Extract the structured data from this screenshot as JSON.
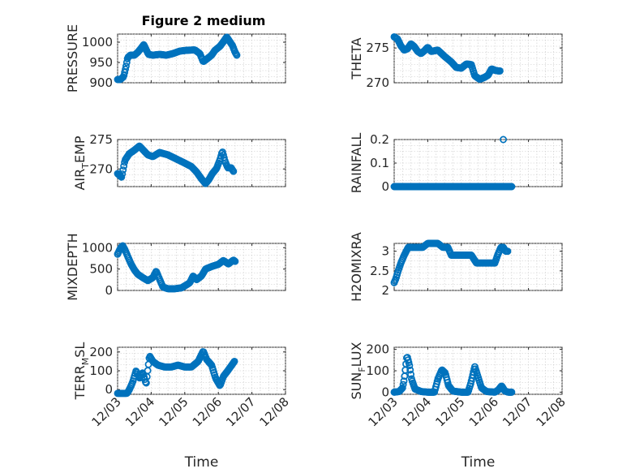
{
  "figure_title": "Figure 2 medium",
  "marker_color": "#0072bd",
  "chart_data": [
    {
      "type": "scatter",
      "id": "pressure",
      "ylabel": "PRESSURE",
      "ylabel_sub": "",
      "ylim": [
        900,
        1020
      ],
      "yticks": [
        900,
        950,
        1000
      ],
      "yticklabels": [
        "900",
        "950",
        "1000"
      ],
      "xlim": [
        0,
        5
      ],
      "xticks": [
        0,
        1,
        2,
        3,
        4,
        5
      ],
      "xticklabels": [
        "12/03",
        "12/04",
        "12/05",
        "12/06",
        "12/07",
        "12/08"
      ],
      "show_xticklabels": false,
      "xlabel": "",
      "grid": true,
      "knots": [
        [
          0,
          908
        ],
        [
          0.08,
          908
        ],
        [
          0.18,
          915
        ],
        [
          0.25,
          940
        ],
        [
          0.3,
          962
        ],
        [
          0.38,
          968
        ],
        [
          0.5,
          968
        ],
        [
          0.6,
          975
        ],
        [
          0.7,
          985
        ],
        [
          0.78,
          994
        ],
        [
          0.86,
          980
        ],
        [
          0.92,
          970
        ],
        [
          1.05,
          968
        ],
        [
          1.25,
          970
        ],
        [
          1.45,
          968
        ],
        [
          1.65,
          972
        ],
        [
          1.85,
          978
        ],
        [
          2.05,
          980
        ],
        [
          2.3,
          981
        ],
        [
          2.45,
          972
        ],
        [
          2.55,
          952
        ],
        [
          2.65,
          958
        ],
        [
          2.8,
          968
        ],
        [
          2.9,
          980
        ],
        [
          3.05,
          990
        ],
        [
          3.15,
          1001
        ],
        [
          3.25,
          1013
        ],
        [
          3.32,
          1004
        ],
        [
          3.42,
          992
        ],
        [
          3.5,
          975
        ],
        [
          3.55,
          968
        ]
      ],
      "n": 170
    },
    {
      "type": "scatter",
      "id": "theta",
      "ylabel": "THETA",
      "ylabel_sub": "",
      "ylim": [
        270,
        277
      ],
      "yticks": [
        270,
        275
      ],
      "yticklabels": [
        "270",
        "275"
      ],
      "xlim": [
        0,
        5
      ],
      "xticks": [
        0,
        1,
        2,
        3,
        4,
        5
      ],
      "xticklabels": [
        "12/03",
        "12/04",
        "12/05",
        "12/06",
        "12/07",
        "12/08"
      ],
      "show_xticklabels": false,
      "xlabel": "",
      "grid": true,
      "knots": [
        [
          0,
          276.6
        ],
        [
          0.1,
          276.3
        ],
        [
          0.2,
          275.3
        ],
        [
          0.3,
          274.7
        ],
        [
          0.4,
          274.9
        ],
        [
          0.5,
          275.6
        ],
        [
          0.6,
          275.2
        ],
        [
          0.7,
          274.5
        ],
        [
          0.8,
          274.2
        ],
        [
          0.9,
          274.6
        ],
        [
          1.0,
          275.1
        ],
        [
          1.1,
          274.5
        ],
        [
          1.3,
          274.7
        ],
        [
          1.5,
          273.8
        ],
        [
          1.7,
          273.0
        ],
        [
          1.85,
          272.2
        ],
        [
          2.0,
          272.1
        ],
        [
          2.15,
          272.7
        ],
        [
          2.3,
          272.6
        ],
        [
          2.4,
          271.0
        ],
        [
          2.55,
          270.5
        ],
        [
          2.7,
          270.8
        ],
        [
          2.8,
          271.1
        ],
        [
          2.9,
          272.0
        ],
        [
          3.0,
          271.8
        ],
        [
          3.1,
          271.7
        ],
        [
          3.15,
          271.7
        ]
      ],
      "n": 160
    },
    {
      "type": "scatter",
      "id": "air_temp",
      "ylabel": "AIR",
      "ylabel_sub": "T",
      "ylabel_rest": "EMP",
      "ylim": [
        267,
        275
      ],
      "yticks": [
        270,
        275
      ],
      "yticklabels": [
        "270",
        "275"
      ],
      "xlim": [
        0,
        5
      ],
      "xticks": [
        0,
        1,
        2,
        3,
        4,
        5
      ],
      "xticklabels": [
        "12/03",
        "12/04",
        "12/05",
        "12/06",
        "12/07",
        "12/08"
      ],
      "show_xticklabels": false,
      "xlabel": "",
      "grid": true,
      "knots": [
        [
          0,
          269.2
        ],
        [
          0.12,
          268.6
        ],
        [
          0.22,
          271.5
        ],
        [
          0.35,
          272.6
        ],
        [
          0.5,
          273.2
        ],
        [
          0.65,
          273.9
        ],
        [
          0.75,
          273.3
        ],
        [
          0.9,
          272.4
        ],
        [
          1.05,
          272.1
        ],
        [
          1.25,
          272.8
        ],
        [
          1.5,
          272.4
        ],
        [
          1.75,
          271.7
        ],
        [
          2.0,
          271.0
        ],
        [
          2.2,
          270.4
        ],
        [
          2.35,
          269.5
        ],
        [
          2.5,
          268.3
        ],
        [
          2.62,
          267.5
        ],
        [
          2.72,
          268.2
        ],
        [
          2.82,
          269.2
        ],
        [
          2.95,
          270.1
        ],
        [
          3.05,
          271.6
        ],
        [
          3.12,
          273.0
        ],
        [
          3.2,
          271.3
        ],
        [
          3.28,
          270.2
        ],
        [
          3.38,
          270.2
        ],
        [
          3.45,
          269.6
        ]
      ],
      "n": 150
    },
    {
      "type": "scatter",
      "id": "rainfall",
      "ylabel": "RAINFALL",
      "ylabel_sub": "",
      "ylim": [
        0,
        0.2
      ],
      "yticks": [
        0,
        0.1,
        0.2
      ],
      "yticklabels": [
        "0",
        "0.1",
        "0.2"
      ],
      "xlim": [
        0,
        5
      ],
      "xticks": [
        0,
        1,
        2,
        3,
        4,
        5
      ],
      "xticklabels": [
        "12/03",
        "12/04",
        "12/05",
        "12/06",
        "12/07",
        "12/08"
      ],
      "show_xticklabels": false,
      "xlabel": "",
      "grid": true,
      "knots": [
        [
          0,
          0
        ],
        [
          3.5,
          0
        ]
      ],
      "n": 180,
      "extra_points": [
        [
          3.25,
          0.2
        ]
      ]
    },
    {
      "type": "scatter",
      "id": "mixdepth",
      "ylabel": "MIXDEPTH",
      "ylabel_sub": "",
      "ylim": [
        0,
        1100
      ],
      "yticks": [
        0,
        500,
        1000
      ],
      "yticklabels": [
        "0",
        "500",
        "1000"
      ],
      "xlim": [
        0,
        5
      ],
      "xticks": [
        0,
        1,
        2,
        3,
        4,
        5
      ],
      "xticklabels": [
        "12/03",
        "12/04",
        "12/05",
        "12/06",
        "12/07",
        "12/08"
      ],
      "show_xticklabels": false,
      "xlabel": "",
      "grid": true,
      "knots": [
        [
          0,
          850
        ],
        [
          0.08,
          980
        ],
        [
          0.15,
          1050
        ],
        [
          0.22,
          950
        ],
        [
          0.3,
          800
        ],
        [
          0.4,
          620
        ],
        [
          0.5,
          480
        ],
        [
          0.6,
          380
        ],
        [
          0.75,
          300
        ],
        [
          0.9,
          230
        ],
        [
          1.05,
          300
        ],
        [
          1.15,
          450
        ],
        [
          1.25,
          260
        ],
        [
          1.35,
          80
        ],
        [
          1.5,
          40
        ],
        [
          1.7,
          40
        ],
        [
          1.9,
          60
        ],
        [
          2.05,
          130
        ],
        [
          2.15,
          180
        ],
        [
          2.25,
          340
        ],
        [
          2.35,
          250
        ],
        [
          2.5,
          340
        ],
        [
          2.62,
          500
        ],
        [
          2.8,
          560
        ],
        [
          3.0,
          610
        ],
        [
          3.15,
          700
        ],
        [
          3.3,
          620
        ],
        [
          3.45,
          710
        ],
        [
          3.5,
          680
        ]
      ],
      "n": 160
    },
    {
      "type": "scatter",
      "id": "h2omixra",
      "ylabel": "H2OMIXRA",
      "ylabel_sub": "",
      "ylim": [
        2,
        3.2
      ],
      "yticks": [
        2,
        2.5,
        3
      ],
      "yticklabels": [
        "2",
        "2.5",
        "3"
      ],
      "xlim": [
        0,
        5
      ],
      "xticks": [
        0,
        1,
        2,
        3,
        4,
        5
      ],
      "xticklabels": [
        "12/03",
        "12/04",
        "12/05",
        "12/06",
        "12/07",
        "12/08"
      ],
      "show_xticklabels": false,
      "xlabel": "",
      "grid": true,
      "knots": [
        [
          0,
          2.2
        ],
        [
          0.05,
          2.3
        ],
        [
          0.12,
          2.5
        ],
        [
          0.2,
          2.7
        ],
        [
          0.3,
          2.9
        ],
        [
          0.42,
          3.1
        ],
        [
          0.55,
          3.1
        ],
        [
          0.7,
          3.1
        ],
        [
          0.85,
          3.1
        ],
        [
          1.0,
          3.2
        ],
        [
          1.3,
          3.2
        ],
        [
          1.45,
          3.1
        ],
        [
          1.6,
          3.1
        ],
        [
          1.7,
          2.9
        ],
        [
          2.0,
          2.9
        ],
        [
          2.3,
          2.9
        ],
        [
          2.45,
          2.7
        ],
        [
          2.75,
          2.7
        ],
        [
          3.0,
          2.7
        ],
        [
          3.08,
          2.9
        ],
        [
          3.18,
          3.1
        ],
        [
          3.25,
          3.1
        ],
        [
          3.32,
          3.0
        ],
        [
          3.38,
          3.0
        ]
      ],
      "n": 160
    },
    {
      "type": "scatter",
      "id": "terr_msl",
      "ylabel": "TERR",
      "ylabel_sub": "M",
      "ylabel_rest": "SL",
      "ylim": [
        -25,
        225
      ],
      "yticks": [
        0,
        100,
        200
      ],
      "yticklabels": [
        "0",
        "100",
        "200"
      ],
      "xlim": [
        0,
        5
      ],
      "xticks": [
        0,
        1,
        2,
        3,
        4,
        5
      ],
      "xticklabels": [
        "12/03",
        "12/04",
        "12/05",
        "12/06",
        "12/07",
        "12/08"
      ],
      "show_xticklabels": true,
      "xlabel": "Time",
      "grid": true,
      "knots": [
        [
          0,
          -20
        ],
        [
          0.1,
          -20
        ],
        [
          0.28,
          -20
        ],
        [
          0.35,
          0
        ],
        [
          0.45,
          40
        ],
        [
          0.55,
          100
        ],
        [
          0.65,
          60
        ],
        [
          0.75,
          90
        ],
        [
          0.85,
          30
        ],
        [
          0.95,
          180
        ],
        [
          1.05,
          150
        ],
        [
          1.2,
          130
        ],
        [
          1.4,
          120
        ],
        [
          1.6,
          120
        ],
        [
          1.8,
          130
        ],
        [
          2.0,
          120
        ],
        [
          2.2,
          120
        ],
        [
          2.4,
          150
        ],
        [
          2.55,
          205
        ],
        [
          2.65,
          160
        ],
        [
          2.8,
          130
        ],
        [
          2.92,
          60
        ],
        [
          3.05,
          20
        ],
        [
          3.15,
          70
        ],
        [
          3.28,
          100
        ],
        [
          3.4,
          130
        ],
        [
          3.48,
          150
        ]
      ],
      "n": 160
    },
    {
      "type": "scatter",
      "id": "sun_flux",
      "ylabel": "SUN",
      "ylabel_sub": "F",
      "ylabel_rest": "LUX",
      "ylim": [
        -10,
        210
      ],
      "yticks": [
        0,
        100,
        200
      ],
      "yticklabels": [
        "0",
        "100",
        "200"
      ],
      "xlim": [
        0,
        5
      ],
      "xticks": [
        0,
        1,
        2,
        3,
        4,
        5
      ],
      "xticklabels": [
        "12/03",
        "12/04",
        "12/05",
        "12/06",
        "12/07",
        "12/08"
      ],
      "show_xticklabels": true,
      "xlabel": "Time",
      "grid": true,
      "knots": [
        [
          0,
          0
        ],
        [
          0.15,
          3
        ],
        [
          0.25,
          20
        ],
        [
          0.3,
          60
        ],
        [
          0.38,
          170
        ],
        [
          0.45,
          130
        ],
        [
          0.52,
          60
        ],
        [
          0.62,
          15
        ],
        [
          0.8,
          3
        ],
        [
          1.0,
          0
        ],
        [
          1.2,
          0
        ],
        [
          1.3,
          60
        ],
        [
          1.42,
          105
        ],
        [
          1.52,
          90
        ],
        [
          1.62,
          30
        ],
        [
          1.75,
          5
        ],
        [
          2.0,
          0
        ],
        [
          2.2,
          0
        ],
        [
          2.28,
          40
        ],
        [
          2.4,
          120
        ],
        [
          2.5,
          70
        ],
        [
          2.6,
          20
        ],
        [
          2.75,
          3
        ],
        [
          3.0,
          0
        ],
        [
          3.1,
          10
        ],
        [
          3.2,
          30
        ],
        [
          3.3,
          5
        ],
        [
          3.4,
          0
        ],
        [
          3.5,
          0
        ]
      ],
      "n": 170
    }
  ]
}
